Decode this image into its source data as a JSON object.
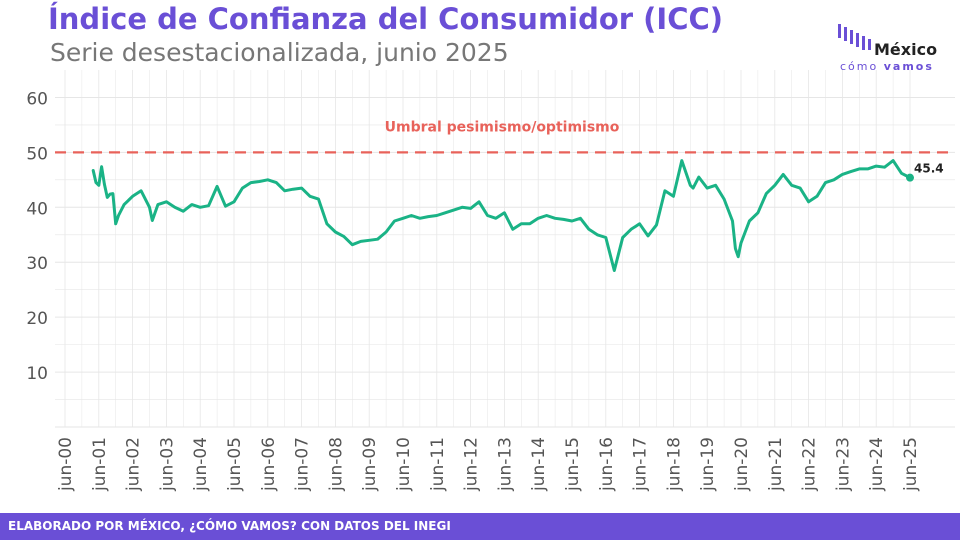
{
  "header": {
    "title": "Índice de Confianza del Consumidor (ICC)",
    "subtitle": "Serie desestacionalizada, junio 2025"
  },
  "logo": {
    "name": "México",
    "tag_part1": "cómo",
    "tag_part2": "vamos"
  },
  "footer": {
    "credit": "ELABORADO POR MÉXICO, ¿CÓMO VAMOS? CON DATOS DEL INEGI"
  },
  "colors": {
    "brand": "#6a4fd6",
    "line": "#1ab386",
    "threshold": "#e8625a",
    "grid": "#e6e6e6"
  },
  "chart_data": {
    "type": "line",
    "title": "Índice de Confianza del Consumidor (ICC)",
    "subtitle": "Serie desestacionalizada, junio 2025",
    "xlabel": "",
    "ylabel": "",
    "ylim": [
      0,
      65
    ],
    "yticks": [
      "10",
      "20",
      "30",
      "40",
      "50",
      "60"
    ],
    "xticks": [
      "jun-00",
      "jun-01",
      "jun-02",
      "jun-03",
      "jun-04",
      "jun-05",
      "jun-06",
      "jun-07",
      "jun-08",
      "jun-09",
      "jun-10",
      "jun-11",
      "jun-12",
      "jun-13",
      "jun-14",
      "jun-15",
      "jun-16",
      "jun-17",
      "jun-18",
      "jun-19",
      "jun-20",
      "jun-21",
      "jun-22",
      "jun-23",
      "jun-24",
      "jun-25"
    ],
    "grid": true,
    "threshold": {
      "value": 50,
      "label": "Umbral pesimismo/optimismo"
    },
    "last_label": "45.4",
    "series": [
      {
        "x": [
          "2001-04",
          "2001-05",
          "2001-06",
          "2001-07",
          "2001-08",
          "2001-09",
          "2001-10",
          "2001-11",
          "2001-12",
          "2002-01",
          "2002-03",
          "2002-06",
          "2002-09",
          "2002-12",
          "2003-01",
          "2003-03",
          "2003-06",
          "2003-09",
          "2003-12",
          "2004-03",
          "2004-06",
          "2004-09",
          "2004-12",
          "2005-03",
          "2005-06",
          "2005-09",
          "2005-12",
          "2006-03",
          "2006-06",
          "2006-09",
          "2006-12",
          "2007-03",
          "2007-06",
          "2007-09",
          "2007-12",
          "2008-03",
          "2008-06",
          "2008-09",
          "2008-12",
          "2009-03",
          "2009-06",
          "2009-09",
          "2009-12",
          "2010-03",
          "2010-06",
          "2010-09",
          "2010-12",
          "2011-03",
          "2011-06",
          "2011-09",
          "2011-12",
          "2012-03",
          "2012-06",
          "2012-09",
          "2012-12",
          "2013-03",
          "2013-06",
          "2013-09",
          "2013-12",
          "2014-03",
          "2014-06",
          "2014-09",
          "2014-12",
          "2015-03",
          "2015-06",
          "2015-09",
          "2015-12",
          "2016-03",
          "2016-06",
          "2016-09",
          "2016-12",
          "2017-01",
          "2017-03",
          "2017-06",
          "2017-09",
          "2017-12",
          "2018-03",
          "2018-06",
          "2018-09",
          "2018-12",
          "2019-01",
          "2019-03",
          "2019-06",
          "2019-09",
          "2019-12",
          "2020-03",
          "2020-04",
          "2020-05",
          "2020-06",
          "2020-09",
          "2020-12",
          "2021-03",
          "2021-06",
          "2021-09",
          "2021-12",
          "2022-03",
          "2022-06",
          "2022-09",
          "2022-12",
          "2023-03",
          "2023-06",
          "2023-09",
          "2023-12",
          "2024-03",
          "2024-06",
          "2024-09",
          "2024-12",
          "2025-03",
          "2025-06"
        ],
        "values": [
          46.7,
          44.5,
          44.0,
          47.4,
          44.2,
          41.8,
          42.4,
          42.5,
          37.0,
          38.5,
          40.5,
          42.0,
          43.0,
          40.0,
          37.6,
          40.5,
          41.0,
          40.0,
          39.3,
          40.5,
          40.0,
          40.3,
          43.8,
          40.2,
          41.0,
          43.5,
          44.5,
          44.7,
          45.0,
          44.5,
          43.0,
          43.3,
          43.5,
          42.0,
          41.5,
          37.0,
          35.5,
          34.7,
          33.2,
          33.8,
          34.0,
          34.2,
          35.5,
          37.5,
          38.0,
          38.5,
          38.0,
          38.3,
          38.5,
          39.0,
          39.5,
          40.0,
          39.8,
          41.0,
          38.5,
          38.0,
          39.0,
          36.0,
          37.0,
          37.0,
          38.0,
          38.5,
          38.0,
          37.8,
          37.5,
          38.0,
          36.0,
          35.0,
          34.5,
          28.5,
          34.5,
          35.0,
          36.0,
          37.0,
          34.8,
          36.8,
          43.0,
          42.0,
          48.5,
          44.0,
          43.5,
          45.5,
          43.5,
          44.0,
          41.5,
          37.5,
          32.5,
          31.0,
          33.5,
          37.5,
          39.0,
          42.5,
          44.0,
          46.0,
          44.0,
          43.5,
          41.0,
          42.0,
          44.5,
          45.0,
          46.0,
          46.5,
          47.0,
          47.0,
          47.5,
          47.3,
          48.5,
          46.2,
          45.4
        ]
      }
    ]
  }
}
